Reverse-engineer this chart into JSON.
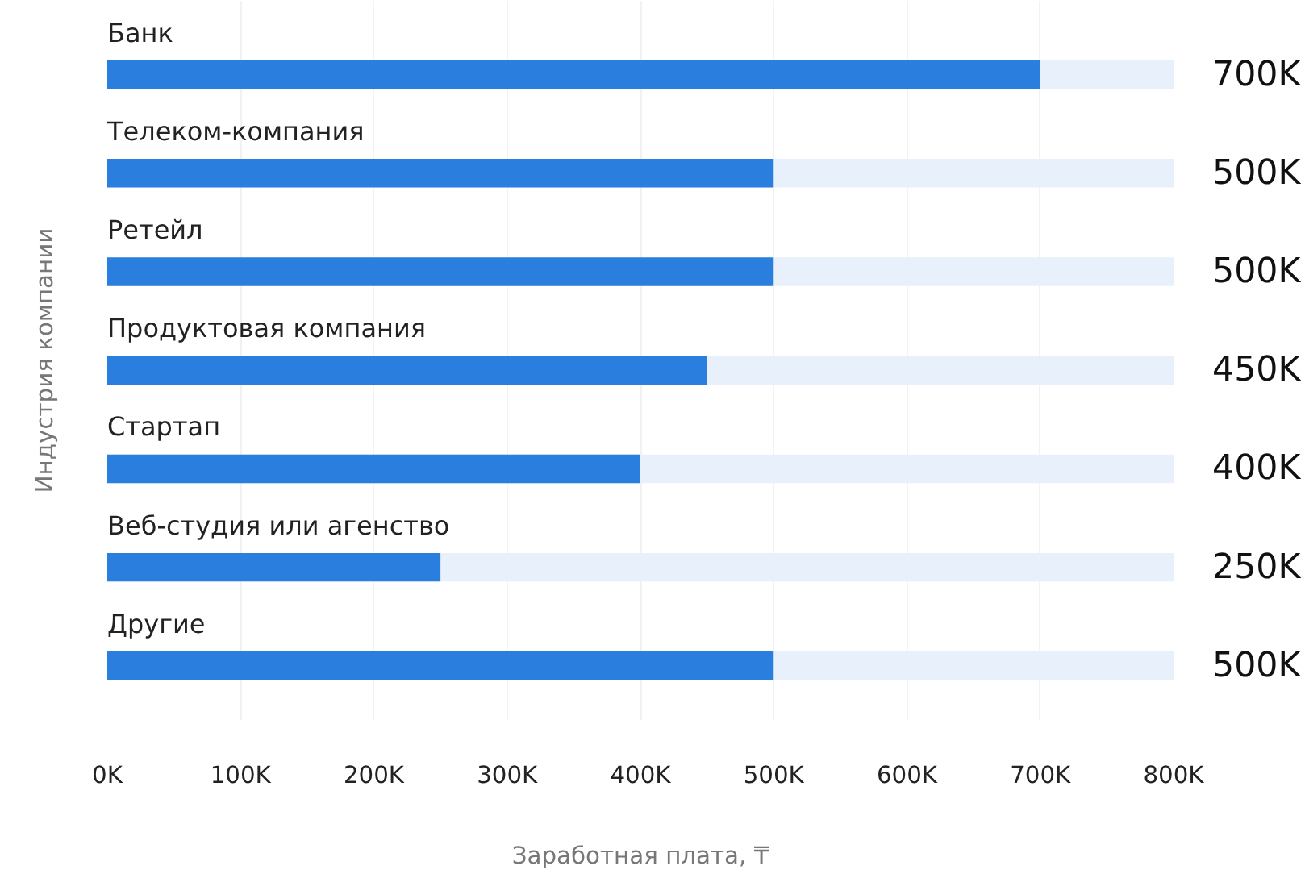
{
  "chart_data": {
    "type": "bar",
    "orientation": "horizontal",
    "xlabel": "Заработная плата, ₸",
    "ylabel": "Индустрия компании",
    "categories": [
      "Банк",
      "Телеком-компания",
      "Ретейл",
      "Продуктовая компания",
      "Стартап",
      "Веб-студия или агенство",
      "Другие"
    ],
    "values": [
      700000,
      500000,
      500000,
      450000,
      400000,
      250000,
      500000
    ],
    "value_labels": [
      "700K",
      "500K",
      "500K",
      "450K",
      "400K",
      "250K",
      "500K"
    ],
    "color": "#2a7fde",
    "xlim": [
      0,
      800000
    ],
    "xticks": [
      {
        "value": 0,
        "label": "0K"
      },
      {
        "value": 100000,
        "label": "100K"
      },
      {
        "value": 200000,
        "label": "200K"
      },
      {
        "value": 300000,
        "label": "300K"
      },
      {
        "value": 400000,
        "label": "400K"
      },
      {
        "value": 500000,
        "label": "500K"
      },
      {
        "value": 600000,
        "label": "600K"
      },
      {
        "value": 700000,
        "label": "700K"
      },
      {
        "value": 800000,
        "label": "800K"
      }
    ],
    "grid": "x",
    "tick_labels": "x"
  }
}
